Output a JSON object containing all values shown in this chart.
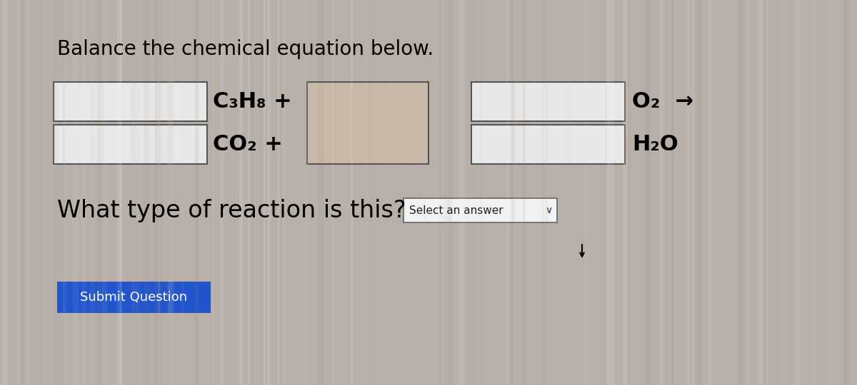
{
  "bg_color": "#b8b0a8",
  "title": "Balance the chemical equation below.",
  "title_fontsize": 20,
  "row1_formula": "C₃H₈ +",
  "row2_formula": "CO₂ +",
  "row1_product": "O₂",
  "row2_product": "H₂O",
  "arrow": "→",
  "reaction_question": "What type of reaction is this?",
  "dropdown_text": "Select an answer",
  "submit_text": "Submit Question",
  "submit_bg": "#2255cc",
  "submit_text_color": "#ffffff",
  "center_box_color": "#c8b8a8",
  "white_box_color": "#e8e8e8",
  "box_edge": "#555555",
  "stripe_color_light": "#bdb5ad",
  "stripe_color_dark": "#a8a098"
}
